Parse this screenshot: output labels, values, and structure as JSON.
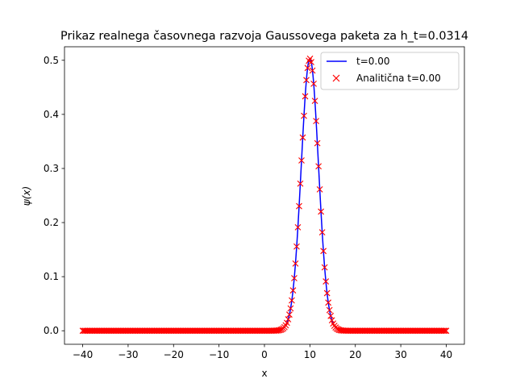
{
  "chart_data": {
    "type": "line",
    "title": "Prikaz realnega časovnega razvoja Gaussovega paketa za h_t=0.0314",
    "xlabel": "x",
    "ylabel": "ψ(x)",
    "xlim": [
      -44,
      44
    ],
    "ylim": [
      -0.025,
      0.525
    ],
    "xticks": [
      -40,
      -30,
      -20,
      -10,
      0,
      10,
      20,
      30,
      40
    ],
    "xtick_labels": [
      "−40",
      "−30",
      "−20",
      "−10",
      "0",
      "10",
      "20",
      "30",
      "40"
    ],
    "yticks": [
      0.0,
      0.1,
      0.2,
      0.3,
      0.4,
      0.5
    ],
    "ytick_labels": [
      "0.0",
      "0.1",
      "0.2",
      "0.3",
      "0.4",
      "0.5"
    ],
    "grid": false,
    "legend_position": "top-right",
    "series": [
      {
        "name": "t=0.00",
        "style": "line",
        "color": "#0000ff",
        "x_range": [
          -40,
          40
        ],
        "peak_x": 10,
        "peak_y": 0.503,
        "sigma": 1.9
      },
      {
        "name": "Analitična t=0.00",
        "style": "marker-x",
        "color": "#ff0000",
        "x_range": [
          -40,
          40
        ],
        "num_points": 300,
        "peak_x": 10,
        "peak_y": 0.503,
        "sigma": 1.9
      }
    ]
  }
}
